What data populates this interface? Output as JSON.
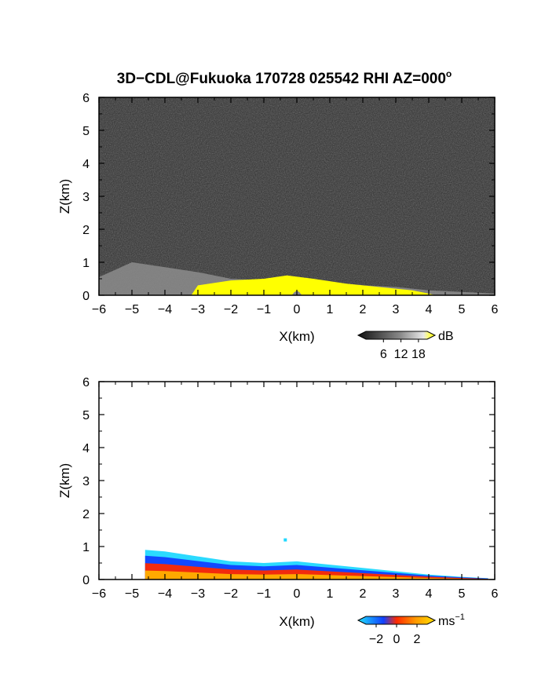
{
  "chart_data": [
    {
      "type": "heatmap",
      "title": "3D−CDL@Fukuoka 170728 025542 RHI AZ=000",
      "title_degree_mark": "o",
      "xlabel": "X(km)",
      "ylabel": "Z(km)",
      "xlim": [
        -6,
        6
      ],
      "ylim": [
        0,
        6
      ],
      "xticks": [
        "−6",
        "−5",
        "−4",
        "−3",
        "−2",
        "−1",
        "0",
        "1",
        "2",
        "3",
        "4",
        "5",
        "6"
      ],
      "yticks": [
        "0",
        "1",
        "2",
        "3",
        "4",
        "5",
        "6"
      ],
      "colorbar": {
        "label": "dB",
        "ticks": [
          "6",
          "12",
          "18"
        ],
        "tick_values": [
          6,
          12,
          18
        ],
        "range": [
          0,
          21
        ]
      },
      "colors": {
        "background": "#2b2b2b",
        "signal_high": "#ffff00",
        "signal_mid": "#9a9a9a"
      },
      "echo_top_profile_x": [
        -6,
        -5,
        -4,
        -3,
        -2,
        -1,
        0,
        1,
        2,
        3,
        4,
        5,
        6
      ],
      "echo_top_profile_z": [
        0.55,
        1.0,
        0.85,
        0.7,
        0.5,
        0.45,
        0.55,
        0.4,
        0.3,
        0.25,
        0.15,
        0.1,
        0.05
      ]
    },
    {
      "type": "heatmap",
      "xlabel": "X(km)",
      "ylabel": "Z(km)",
      "xlim": [
        -6,
        6
      ],
      "ylim": [
        0,
        6
      ],
      "xticks": [
        "−6",
        "−5",
        "−4",
        "−3",
        "−2",
        "−1",
        "0",
        "1",
        "2",
        "3",
        "4",
        "5",
        "6"
      ],
      "yticks": [
        "0",
        "1",
        "2",
        "3",
        "4",
        "5",
        "6"
      ],
      "colorbar": {
        "label": "ms",
        "label_exponent": "−1",
        "ticks": [
          "−2",
          "0",
          "2"
        ],
        "tick_values": [
          -2,
          0,
          2
        ],
        "range": [
          -3,
          3
        ]
      },
      "colors": {
        "toward": "#1040ff",
        "away": "#ff2a00",
        "weak_away": "#ffb000",
        "weak_toward": "#20d8ff"
      },
      "echo_top_profile_x": [
        -4.6,
        -4,
        -3,
        -2,
        -1,
        0,
        1,
        2,
        3,
        4,
        5,
        5.8
      ],
      "echo_top_profile_z": [
        0.9,
        0.85,
        0.7,
        0.55,
        0.5,
        0.55,
        0.45,
        0.35,
        0.25,
        0.15,
        0.08,
        0.04
      ]
    }
  ]
}
